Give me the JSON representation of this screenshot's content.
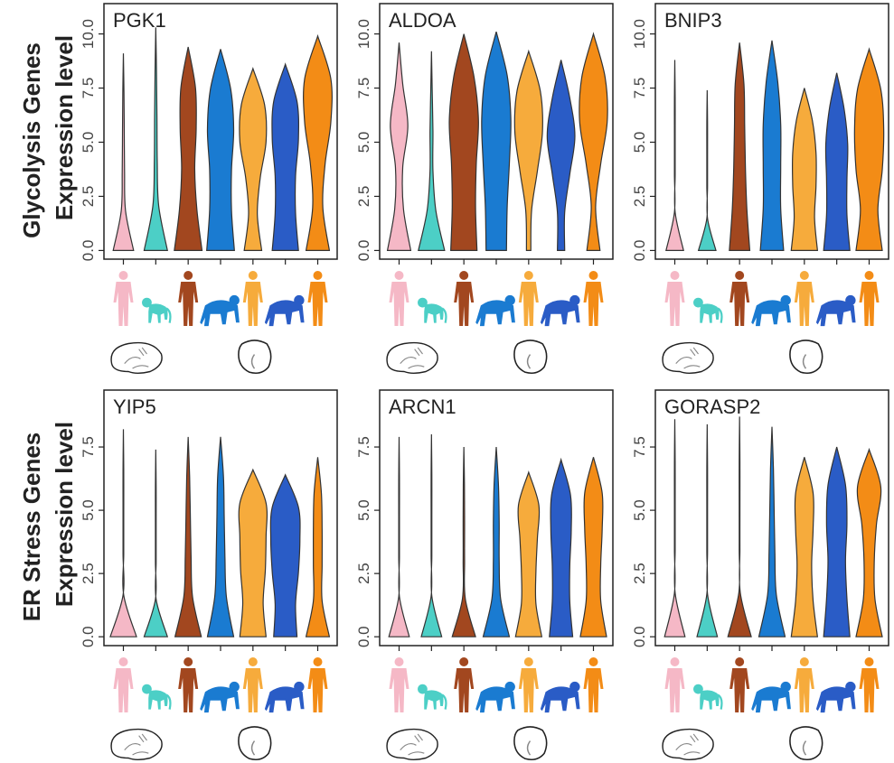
{
  "rows": [
    {
      "title": "Glycolysis Genes",
      "ylabel": "Expression level"
    },
    {
      "title": "ER Stress Genes",
      "ylabel": "Expression level"
    }
  ],
  "chart_data": [
    {
      "type": "violin",
      "title": "PGK1",
      "ylim": [
        -0.4,
        11.4
      ],
      "yticks": [
        {
          "value": 0,
          "label": "0.0"
        },
        2.5,
        {
          "value": 5,
          "label": "5.0"
        },
        7.5,
        {
          "value": 10,
          "label": "10.0"
        }
      ],
      "violins": [
        {
          "color": "#f5b8c6",
          "min": 0,
          "max": 9.1,
          "density": [
            0.7,
            0.15,
            0.08,
            0.06,
            0.04,
            0
          ]
        },
        {
          "color": "#4ccfc6",
          "min": 0,
          "max": 10.3,
          "density": [
            0.8,
            0.2,
            0.1,
            0.08,
            0.05,
            0
          ]
        },
        {
          "color": "#a2471f",
          "min": 0,
          "max": 9.4,
          "density": [
            0.95,
            0.6,
            0.45,
            0.55,
            0.5,
            0
          ]
        },
        {
          "color": "#1a7bd1",
          "min": 0,
          "max": 9.3,
          "density": [
            0.95,
            0.75,
            0.75,
            0.9,
            0.7,
            0
          ]
        },
        {
          "color": "#f6ab3c",
          "min": 0,
          "max": 8.4,
          "density": [
            0.6,
            0.3,
            0.5,
            0.9,
            0.8,
            0
          ]
        },
        {
          "color": "#2a5cc6",
          "min": 0,
          "max": 8.6,
          "density": [
            0.9,
            0.7,
            0.7,
            0.9,
            0.8,
            0
          ]
        },
        {
          "color": "#f38c16",
          "min": 0,
          "max": 9.9,
          "density": [
            0.8,
            0.35,
            0.5,
            0.9,
            0.9,
            0
          ]
        }
      ]
    },
    {
      "type": "violin",
      "title": "ALDOA",
      "ylim": [
        -0.4,
        11.4
      ],
      "yticks": [
        {
          "value": 0,
          "label": "0.0"
        },
        2.5,
        {
          "value": 5,
          "label": "5.0"
        },
        7.5,
        {
          "value": 10,
          "label": "10.0"
        }
      ],
      "violins": [
        {
          "color": "#f5b8c6",
          "min": 0,
          "max": 9.6,
          "density": [
            0.8,
            0.3,
            0.25,
            0.6,
            0.25,
            0
          ]
        },
        {
          "color": "#4ccfc6",
          "min": 0,
          "max": 9.2,
          "density": [
            0.9,
            0.3,
            0.1,
            0.1,
            0.05,
            0
          ]
        },
        {
          "color": "#a2471f",
          "min": 0,
          "max": 10.0,
          "density": [
            0.9,
            0.8,
            0.85,
            1,
            0.7,
            0
          ]
        },
        {
          "color": "#1a7bd1",
          "min": 0,
          "max": 10.1,
          "density": [
            0.7,
            0.75,
            0.9,
            1,
            0.75,
            0
          ]
        },
        {
          "color": "#f6ab3c",
          "min": 0,
          "max": 9.2,
          "density": [
            0.15,
            0.2,
            0.6,
            0.95,
            0.8,
            0
          ]
        },
        {
          "color": "#2a5cc6",
          "min": 0,
          "max": 8.8,
          "density": [
            0.25,
            0.25,
            0.6,
            0.95,
            0.6,
            0
          ]
        },
        {
          "color": "#f38c16",
          "min": 0,
          "max": 10.0,
          "density": [
            0.45,
            0.15,
            0.5,
            0.95,
            0.8,
            0
          ]
        }
      ]
    },
    {
      "type": "violin",
      "title": "BNIP3",
      "ylim": [
        -0.4,
        11.4
      ],
      "yticks": [
        {
          "value": 0,
          "label": "0.0"
        },
        2.5,
        {
          "value": 5,
          "label": "5.0"
        },
        7.5,
        {
          "value": 10,
          "label": "10.0"
        }
      ],
      "violins": [
        {
          "color": "#f5b8c6",
          "min": 0,
          "max": 8.8,
          "density": [
            0.6,
            0.02,
            0.02,
            0.02,
            0.02,
            0
          ]
        },
        {
          "color": "#4ccfc6",
          "min": 0,
          "max": 7.4,
          "density": [
            0.6,
            0.02,
            0.02,
            0.02,
            0.02,
            0
          ]
        },
        {
          "color": "#a2471f",
          "min": 0,
          "max": 9.6,
          "density": [
            0.7,
            0.5,
            0.4,
            0.35,
            0.3,
            0
          ]
        },
        {
          "color": "#1a7bd1",
          "min": 0,
          "max": 9.7,
          "density": [
            0.8,
            0.6,
            0.6,
            0.6,
            0.4,
            0
          ]
        },
        {
          "color": "#f6ab3c",
          "min": 0,
          "max": 7.5,
          "density": [
            0.9,
            0.7,
            0.8,
            0.8,
            0.55,
            0
          ]
        },
        {
          "color": "#2a5cc6",
          "min": 0,
          "max": 8.2,
          "density": [
            0.9,
            0.7,
            0.7,
            0.75,
            0.5,
            0
          ]
        },
        {
          "color": "#f38c16",
          "min": 0,
          "max": 9.3,
          "density": [
            0.9,
            0.6,
            0.9,
            1,
            0.8,
            0
          ]
        }
      ]
    },
    {
      "type": "violin",
      "title": "YIP5",
      "ylim": [
        -0.35,
        9.75
      ],
      "yticks": [
        {
          "value": 0,
          "label": "0.0"
        },
        2.5,
        {
          "value": 5,
          "label": "5.0"
        },
        7.5
      ],
      "violins": [
        {
          "color": "#f5b8c6",
          "min": 0,
          "max": 8.2,
          "density": [
            0.9,
            0.02,
            0.02,
            0.02,
            0.02,
            0
          ]
        },
        {
          "color": "#4ccfc6",
          "min": 0,
          "max": 7.4,
          "density": [
            0.8,
            0.02,
            0.02,
            0.02,
            0.02,
            0
          ]
        },
        {
          "color": "#a2471f",
          "min": 0,
          "max": 7.9,
          "density": [
            0.9,
            0.3,
            0.2,
            0.15,
            0.1,
            0
          ]
        },
        {
          "color": "#1a7bd1",
          "min": 0,
          "max": 7.9,
          "density": [
            0.9,
            0.4,
            0.3,
            0.25,
            0.2,
            0
          ]
        },
        {
          "color": "#f6ab3c",
          "min": 0,
          "max": 6.6,
          "density": [
            0.9,
            0.7,
            0.85,
            0.9,
            0.9,
            0
          ]
        },
        {
          "color": "#2a5cc6",
          "min": 0,
          "max": 6.4,
          "density": [
            0.8,
            0.7,
            0.9,
            1,
            0.9,
            0
          ]
        },
        {
          "color": "#f38c16",
          "min": 0,
          "max": 7.1,
          "density": [
            0.8,
            0.3,
            0.3,
            0.3,
            0.25,
            0
          ]
        }
      ]
    },
    {
      "type": "violin",
      "title": "ARCN1",
      "ylim": [
        -0.35,
        9.75
      ],
      "yticks": [
        {
          "value": 0,
          "label": "0.0"
        },
        2.5,
        {
          "value": 5,
          "label": "5.0"
        },
        7.5
      ],
      "violins": [
        {
          "color": "#f5b8c6",
          "min": 0,
          "max": 7.9,
          "density": [
            0.7,
            0.02,
            0.02,
            0.02,
            0.02,
            0
          ]
        },
        {
          "color": "#4ccfc6",
          "min": 0,
          "max": 8.0,
          "density": [
            0.7,
            0.02,
            0.02,
            0.02,
            0.02,
            0
          ]
        },
        {
          "color": "#a2471f",
          "min": 0,
          "max": 7.5,
          "density": [
            0.8,
            0.1,
            0.05,
            0.05,
            0.04,
            0
          ]
        },
        {
          "color": "#1a7bd1",
          "min": 0,
          "max": 7.5,
          "density": [
            0.9,
            0.3,
            0.2,
            0.2,
            0.15,
            0
          ]
        },
        {
          "color": "#f6ab3c",
          "min": 0,
          "max": 6.5,
          "density": [
            0.9,
            0.5,
            0.5,
            0.6,
            0.7,
            0
          ]
        },
        {
          "color": "#2a5cc6",
          "min": 0,
          "max": 7.0,
          "density": [
            0.8,
            0.6,
            0.6,
            0.7,
            0.65,
            0
          ]
        },
        {
          "color": "#f38c16",
          "min": 0,
          "max": 7.1,
          "density": [
            0.9,
            0.5,
            0.5,
            0.6,
            0.6,
            0
          ]
        }
      ]
    },
    {
      "type": "violin",
      "title": "GORASP2",
      "ylim": [
        -0.35,
        9.75
      ],
      "yticks": [
        {
          "value": 0,
          "label": "0.0"
        },
        2.5,
        {
          "value": 5,
          "label": "5.0"
        },
        7.5
      ],
      "violins": [
        {
          "color": "#f5b8c6",
          "min": 0,
          "max": 8.6,
          "density": [
            0.7,
            0.02,
            0.02,
            0.02,
            0.02,
            0
          ]
        },
        {
          "color": "#4ccfc6",
          "min": 0,
          "max": 8.4,
          "density": [
            0.7,
            0.02,
            0.02,
            0.02,
            0.02,
            0
          ]
        },
        {
          "color": "#a2471f",
          "min": 0,
          "max": 8.7,
          "density": [
            0.8,
            0.05,
            0.02,
            0.02,
            0.02,
            0
          ]
        },
        {
          "color": "#1a7bd1",
          "min": 0,
          "max": 8.3,
          "density": [
            0.9,
            0.3,
            0.2,
            0.15,
            0.1,
            0
          ]
        },
        {
          "color": "#f6ab3c",
          "min": 0,
          "max": 7.1,
          "density": [
            0.9,
            0.6,
            0.5,
            0.6,
            0.6,
            0
          ]
        },
        {
          "color": "#2a5cc6",
          "min": 0,
          "max": 7.5,
          "density": [
            0.9,
            0.7,
            0.6,
            0.7,
            0.6,
            0
          ]
        },
        {
          "color": "#f38c16",
          "min": 0,
          "max": 7.4,
          "density": [
            0.9,
            0.4,
            0.35,
            0.5,
            0.8,
            0
          ]
        }
      ]
    }
  ]
}
